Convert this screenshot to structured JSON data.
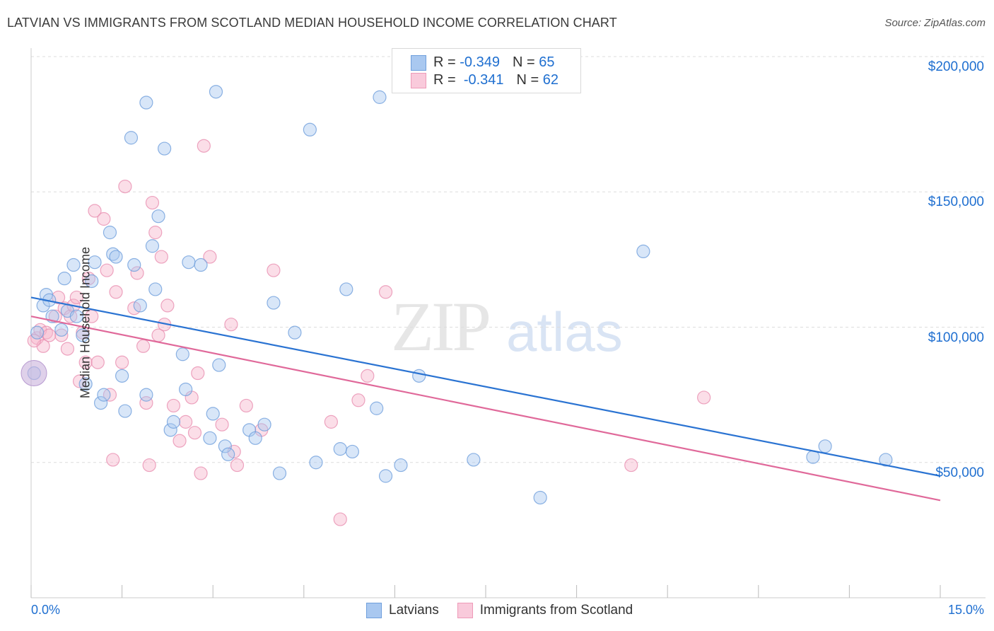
{
  "title": "LATVIAN VS IMMIGRANTS FROM SCOTLAND MEDIAN HOUSEHOLD INCOME CORRELATION CHART",
  "source": "Source: ZipAtlas.com",
  "watermark": {
    "zip": "ZIP",
    "atlas": "atlas"
  },
  "colors": {
    "latvians_fill": "#a9c8f0",
    "latvians_line": "#2a73d2",
    "scotland_fill": "#f6b6cb",
    "scotland_line": "#e0699a",
    "tick_text": "#1f6fd0",
    "grid": "#dddddd"
  },
  "legend": {
    "rows": [
      {
        "r_label": "R =",
        "r_value": "-0.349",
        "n_label": "N =",
        "n_value": "65"
      },
      {
        "r_label": "R =",
        "r_value": "-0.341",
        "n_label": "N =",
        "n_value": "62"
      }
    ]
  },
  "bottom_legend": {
    "latvians": "Latvians",
    "scotland": "Immigrants from Scotland"
  },
  "chart_data": {
    "type": "scatter",
    "ylabel": "Median Household Income",
    "xlim": [
      0,
      15
    ],
    "ylim": [
      0,
      210000
    ],
    "x_tick_labels": {
      "min": "0.0%",
      "max": "15.0%"
    },
    "y_ticks": [
      {
        "value": 50000,
        "label": "$50,000"
      },
      {
        "value": 100000,
        "label": "$100,000"
      },
      {
        "value": 150000,
        "label": "$150,000"
      },
      {
        "value": 200000,
        "label": "$200,000"
      }
    ],
    "grid": true,
    "series": [
      {
        "name": "Latvians",
        "trend": {
          "x0": 0,
          "y0": 111000,
          "x1": 15,
          "y1": 45000
        },
        "points": [
          [
            0.1,
            98000
          ],
          [
            0.2,
            108000
          ],
          [
            0.25,
            112000
          ],
          [
            0.3,
            110000
          ],
          [
            0.35,
            104000
          ],
          [
            0.5,
            99000
          ],
          [
            0.55,
            118000
          ],
          [
            0.6,
            106000
          ],
          [
            0.7,
            123000
          ],
          [
            0.75,
            104000
          ],
          [
            0.85,
            97000
          ],
          [
            0.9,
            79000
          ],
          [
            1.0,
            117000
          ],
          [
            1.05,
            124000
          ],
          [
            1.15,
            72000
          ],
          [
            1.2,
            75000
          ],
          [
            1.3,
            135000
          ],
          [
            1.35,
            127000
          ],
          [
            1.4,
            126000
          ],
          [
            1.5,
            82000
          ],
          [
            1.55,
            69000
          ],
          [
            1.65,
            170000
          ],
          [
            1.7,
            123000
          ],
          [
            1.8,
            108000
          ],
          [
            1.9,
            75000
          ],
          [
            1.9,
            183000
          ],
          [
            2.0,
            130000
          ],
          [
            2.05,
            114000
          ],
          [
            2.1,
            141000
          ],
          [
            2.2,
            166000
          ],
          [
            2.3,
            62000
          ],
          [
            2.35,
            65000
          ],
          [
            2.5,
            90000
          ],
          [
            2.55,
            77000
          ],
          [
            2.6,
            124000
          ],
          [
            2.8,
            123000
          ],
          [
            2.95,
            59000
          ],
          [
            3.0,
            68000
          ],
          [
            3.05,
            187000
          ],
          [
            3.1,
            86000
          ],
          [
            3.2,
            56000
          ],
          [
            3.25,
            53000
          ],
          [
            3.6,
            62000
          ],
          [
            3.7,
            59000
          ],
          [
            3.85,
            64000
          ],
          [
            4.0,
            109000
          ],
          [
            4.1,
            46000
          ],
          [
            4.35,
            98000
          ],
          [
            4.6,
            173000
          ],
          [
            4.7,
            50000
          ],
          [
            5.1,
            55000
          ],
          [
            5.2,
            114000
          ],
          [
            5.3,
            54000
          ],
          [
            5.7,
            70000
          ],
          [
            5.75,
            185000
          ],
          [
            5.85,
            45000
          ],
          [
            6.1,
            49000
          ],
          [
            6.4,
            82000
          ],
          [
            7.3,
            51000
          ],
          [
            8.4,
            37000
          ],
          [
            10.1,
            128000
          ],
          [
            12.9,
            52000
          ],
          [
            13.1,
            56000
          ],
          [
            14.1,
            51000
          ],
          [
            0.05,
            83000
          ]
        ]
      },
      {
        "name": "Immigrants from Scotland",
        "trend": {
          "x0": 0,
          "y0": 104000,
          "x1": 15,
          "y1": 36000
        },
        "points": [
          [
            0.1,
            96000
          ],
          [
            0.15,
            99000
          ],
          [
            0.25,
            98000
          ],
          [
            0.3,
            97000
          ],
          [
            0.4,
            104000
          ],
          [
            0.45,
            111000
          ],
          [
            0.5,
            97000
          ],
          [
            0.55,
            107000
          ],
          [
            0.6,
            92000
          ],
          [
            0.65,
            104000
          ],
          [
            0.7,
            108000
          ],
          [
            0.75,
            111000
          ],
          [
            0.8,
            80000
          ],
          [
            0.85,
            98000
          ],
          [
            0.9,
            87000
          ],
          [
            0.95,
            118000
          ],
          [
            1.0,
            104000
          ],
          [
            1.05,
            143000
          ],
          [
            1.1,
            87000
          ],
          [
            1.2,
            140000
          ],
          [
            1.25,
            121000
          ],
          [
            1.3,
            75000
          ],
          [
            1.35,
            51000
          ],
          [
            1.4,
            113000
          ],
          [
            1.5,
            87000
          ],
          [
            1.55,
            152000
          ],
          [
            1.7,
            107000
          ],
          [
            1.75,
            120000
          ],
          [
            1.85,
            93000
          ],
          [
            1.9,
            72000
          ],
          [
            1.95,
            49000
          ],
          [
            2.0,
            146000
          ],
          [
            2.05,
            135000
          ],
          [
            2.1,
            97000
          ],
          [
            2.15,
            126000
          ],
          [
            2.2,
            101000
          ],
          [
            2.25,
            108000
          ],
          [
            2.35,
            71000
          ],
          [
            2.45,
            58000
          ],
          [
            2.55,
            65000
          ],
          [
            2.65,
            74000
          ],
          [
            2.75,
            83000
          ],
          [
            2.8,
            46000
          ],
          [
            2.85,
            167000
          ],
          [
            2.95,
            126000
          ],
          [
            3.15,
            64000
          ],
          [
            3.3,
            101000
          ],
          [
            3.35,
            54000
          ],
          [
            3.4,
            49000
          ],
          [
            3.55,
            71000
          ],
          [
            3.8,
            62000
          ],
          [
            4.0,
            121000
          ],
          [
            4.95,
            65000
          ],
          [
            5.1,
            29000
          ],
          [
            5.4,
            73000
          ],
          [
            5.55,
            82000
          ],
          [
            5.85,
            113000
          ],
          [
            9.9,
            49000
          ],
          [
            11.1,
            74000
          ],
          [
            0.2,
            93000
          ],
          [
            0.05,
            95000
          ],
          [
            2.7,
            61000
          ]
        ]
      }
    ]
  }
}
